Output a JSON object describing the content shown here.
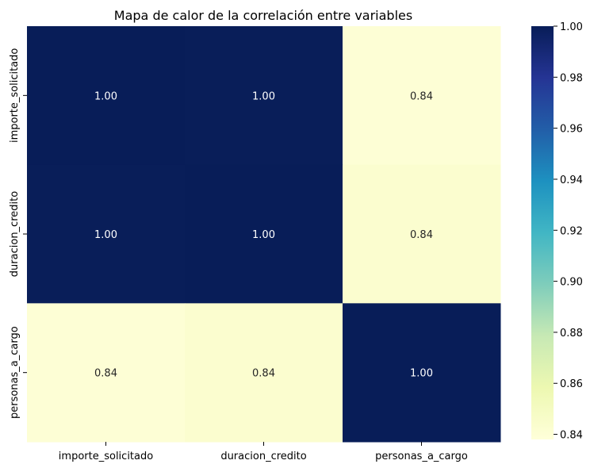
{
  "chart_data": {
    "type": "heatmap",
    "title": "Mapa de calor de la correlación entre variables",
    "xlabel": "",
    "ylabel": "",
    "x_categories": [
      "importe_solicitado",
      "duracion_credito",
      "personas_a_cargo"
    ],
    "y_categories": [
      "importe_solicitado",
      "duracion_credito",
      "personas_a_cargo"
    ],
    "values": [
      [
        1.0,
        0.9995,
        0.84
      ],
      [
        0.9995,
        1.0,
        0.843
      ],
      [
        0.84,
        0.843,
        1.0
      ]
    ],
    "annotations": [
      [
        "1.00",
        "1.00",
        "0.84"
      ],
      [
        "1.00",
        "1.00",
        "0.84"
      ],
      [
        "0.84",
        "0.84",
        "1.00"
      ]
    ],
    "colormap": "YlGnBu",
    "colorbar": {
      "range": [
        0.838,
        1.0
      ],
      "ticks": [
        "1.00",
        "0.98",
        "0.96",
        "0.94",
        "0.92",
        "0.90",
        "0.88",
        "0.86",
        "0.84"
      ],
      "tick_values": [
        1.0,
        0.98,
        0.96,
        0.94,
        0.92,
        0.9,
        0.88,
        0.86,
        0.84
      ]
    },
    "colors": {
      "low": "#ffffd9",
      "high": "#081d58",
      "annotation_light": "#ffffff",
      "annotation_dark": "#262626"
    }
  }
}
